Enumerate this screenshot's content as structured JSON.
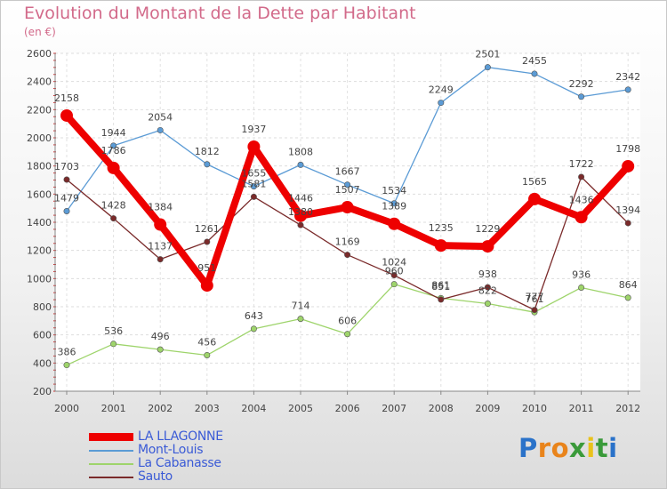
{
  "title": "Evolution du Montant de la Dette par Habitant",
  "subtitle": "(en €)",
  "logo": {
    "letters": [
      "P",
      "r",
      "o",
      "x",
      "i",
      "t",
      "i"
    ],
    "colors": [
      "#2a72c9",
      "#e9841b",
      "#e9841b",
      "#3a9a3a",
      "#e9c21b",
      "#3a9a3a",
      "#2a72c9"
    ]
  },
  "chart_data": {
    "type": "line",
    "title": "Evolution du Montant de la Dette par Habitant",
    "subtitle": "(en €)",
    "x": [
      "2000",
      "2001",
      "2002",
      "2003",
      "2004",
      "2005",
      "2006",
      "2007",
      "2008",
      "2009",
      "2010",
      "2011",
      "2012"
    ],
    "ylim": [
      200,
      2600
    ],
    "yticks": [
      "200",
      "400",
      "600",
      "800",
      "1000",
      "1200",
      "1400",
      "1600",
      "1800",
      "2000",
      "2200",
      "2400",
      "2600"
    ],
    "grid": true,
    "legend_position": "bottom-left",
    "series": [
      {
        "name": "LA LLAGONNE",
        "color": "#ee0000",
        "values": [
          2158,
          1786,
          1384,
          951,
          1937,
          1446,
          1507,
          1389,
          1235,
          1229,
          1565,
          1436,
          1798
        ],
        "labels": [
          "2158",
          "1786",
          "1384",
          "951",
          "1937",
          "1446",
          "1507",
          "1389",
          "1235",
          "1229",
          "1565",
          "1436",
          "1798"
        ],
        "label_dy": [
          -16,
          -16,
          -16,
          -16,
          -16,
          -16,
          -16,
          -16,
          -16,
          -16,
          -16,
          -16,
          -16
        ]
      },
      {
        "name": "Mont-Louis",
        "color": "#5b9bd5",
        "values": [
          1479,
          1944,
          2054,
          1812,
          1655,
          1808,
          1667,
          1534,
          2249,
          2501,
          2455,
          2292,
          2342
        ],
        "labels": [
          "1479",
          "1944",
          "2054",
          "1812",
          "1655",
          "1808",
          "1667",
          "1534",
          "2249",
          "2501",
          "2455",
          "2292",
          "2342"
        ],
        "label_dy": [
          -11,
          -11,
          -11,
          -11,
          -11,
          -11,
          -11,
          -11,
          -11,
          -11,
          -11,
          -11,
          -11
        ]
      },
      {
        "name": "La Cabanasse",
        "color": "#9ed46b",
        "values": [
          386,
          536,
          496,
          456,
          643,
          714,
          606,
          960,
          861,
          822,
          761,
          936,
          864
        ],
        "labels": [
          "386",
          "536",
          "496",
          "456",
          "643",
          "714",
          "606",
          "960",
          "861",
          "822",
          "761",
          "936",
          "864"
        ],
        "label_dy": [
          -11,
          -11,
          -11,
          -11,
          -11,
          -11,
          -11,
          -11,
          -11,
          -11,
          -11,
          -11,
          -11
        ]
      },
      {
        "name": "Sauto",
        "color": "#7a2a2a",
        "values": [
          1703,
          1428,
          1137,
          1261,
          1581,
          1380,
          1169,
          1024,
          851,
          938,
          777,
          1722,
          1394
        ],
        "labels": [
          "1703",
          "1428",
          "1137",
          "1261",
          "1581",
          "1380",
          "1169",
          "1024",
          "851",
          "938",
          "777",
          "1722",
          "1394"
        ],
        "label_dy": [
          -11,
          -11,
          -11,
          -11,
          -11,
          -11,
          -11,
          -11,
          -11,
          -11,
          -11,
          -11,
          -11
        ]
      }
    ]
  }
}
